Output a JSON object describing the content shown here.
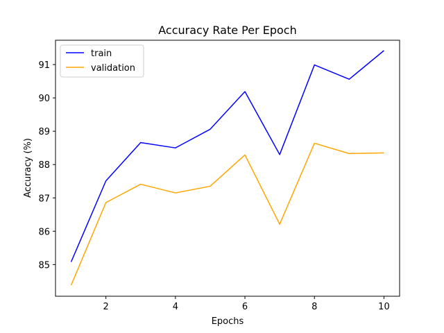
{
  "chart_data": {
    "type": "line",
    "title": "Accuracy Rate Per Epoch",
    "xlabel": "Epochs",
    "ylabel": "Accuracy (%)",
    "x": [
      1,
      2,
      3,
      4,
      5,
      6,
      7,
      8,
      9,
      10
    ],
    "xlim": [
      0.55,
      10.45
    ],
    "ylim": [
      84.05,
      91.73
    ],
    "xticks": [
      2,
      4,
      6,
      8,
      10
    ],
    "yticks": [
      85,
      86,
      87,
      88,
      89,
      90,
      91
    ],
    "grid": false,
    "legend": "top-left",
    "series": [
      {
        "name": "train",
        "color": "#0000ff",
        "values": [
          85.08,
          87.51,
          88.66,
          88.5,
          89.06,
          90.19,
          88.3,
          90.99,
          90.56,
          91.42
        ]
      },
      {
        "name": "validation",
        "color": "#ffa500",
        "values": [
          84.38,
          86.86,
          87.41,
          87.15,
          87.35,
          88.29,
          86.21,
          88.64,
          88.33,
          88.35
        ]
      }
    ]
  }
}
